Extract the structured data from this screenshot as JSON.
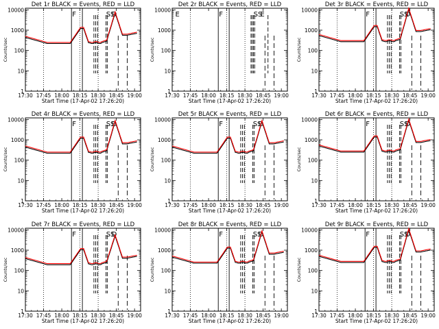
{
  "figure": {
    "x_tick_labels": [
      "17:30",
      "17:45",
      "18:00",
      "18:15",
      "18:30",
      "18:45",
      "19:00"
    ],
    "y_tick_labels": [
      "1",
      "10",
      "100",
      "1000",
      "10000"
    ],
    "y_label": "Counts/sec",
    "x_label": "Start Time (17-Apr-02 17:26:20)"
  },
  "chart_data": [
    {
      "type": "line",
      "title": "Det 1r BLACK = Events, RED = LLD",
      "has_data": true,
      "flag_labels": [
        "F",
        "SS",
        "D"
      ],
      "peak": 8000,
      "base": 250,
      "scale": 1.0,
      "series": [
        {
          "name": "Events",
          "color": "#000000"
        },
        {
          "name": "LLD",
          "color": "#ff0000"
        }
      ],
      "xlim": [
        "17:30",
        "19:05"
      ],
      "ylim": [
        1,
        12000
      ],
      "yscale": "log"
    },
    {
      "type": "line",
      "title": "Det 2r BLACK = Events, RED = LLD",
      "has_data": false,
      "flag_labels": [
        "E",
        "F",
        "SS",
        "E"
      ],
      "peak": 0,
      "base": 0,
      "scale": 1.0,
      "series": [
        {
          "name": "Events",
          "color": "#000000"
        },
        {
          "name": "LLD",
          "color": "#ff0000"
        }
      ],
      "xlim": [
        "17:30",
        "19:05"
      ],
      "ylim": [
        1,
        12000
      ],
      "yscale": "log"
    },
    {
      "type": "line",
      "title": "Det 3r BLACK = Events, RED = LLD",
      "has_data": true,
      "flag_labels": [
        "F",
        "SS",
        "D"
      ],
      "peak": 11000,
      "base": 280,
      "scale": 1.1,
      "series": [
        {
          "name": "Events",
          "color": "#000000"
        },
        {
          "name": "LLD",
          "color": "#ff0000"
        }
      ],
      "xlim": [
        "17:30",
        "19:05"
      ],
      "ylim": [
        1,
        12000
      ],
      "yscale": "log"
    },
    {
      "type": "line",
      "title": "Det 4r BLACK = Events, RED = LLD",
      "has_data": true,
      "flag_labels": [
        "F",
        "SS",
        "D"
      ],
      "peak": 9000,
      "base": 250,
      "scale": 1.0,
      "series": [
        {
          "name": "Events",
          "color": "#000000"
        },
        {
          "name": "LLD",
          "color": "#ff0000"
        }
      ],
      "xlim": [
        "17:30",
        "19:05"
      ],
      "ylim": [
        1,
        12000
      ],
      "yscale": "log"
    },
    {
      "type": "line",
      "title": "Det 5r BLACK = Events, RED = LLD",
      "has_data": true,
      "flag_labels": [
        "F",
        "SS",
        "D"
      ],
      "peak": 9000,
      "base": 250,
      "scale": 1.0,
      "series": [
        {
          "name": "Events",
          "color": "#000000"
        },
        {
          "name": "LLD",
          "color": "#ff0000"
        }
      ],
      "xlim": [
        "17:30",
        "19:05"
      ],
      "ylim": [
        1,
        12000
      ],
      "yscale": "log"
    },
    {
      "type": "line",
      "title": "Det 6r BLACK = Events, RED = LLD",
      "has_data": true,
      "flag_labels": [
        "F",
        "SS",
        "D"
      ],
      "peak": 10000,
      "base": 270,
      "scale": 1.05,
      "series": [
        {
          "name": "Events",
          "color": "#000000"
        },
        {
          "name": "LLD",
          "color": "#ff0000"
        }
      ],
      "xlim": [
        "17:30",
        "19:05"
      ],
      "ylim": [
        1,
        12000
      ],
      "yscale": "log"
    },
    {
      "type": "line",
      "title": "Det 7r BLACK = Events, RED = LLD",
      "has_data": true,
      "flag_labels": [
        "F",
        "SS",
        "D"
      ],
      "peak": 6000,
      "base": 230,
      "scale": 0.95,
      "series": [
        {
          "name": "Events",
          "color": "#000000"
        },
        {
          "name": "LLD",
          "color": "#ff0000"
        }
      ],
      "xlim": [
        "17:30",
        "19:05"
      ],
      "ylim": [
        1,
        12000
      ],
      "yscale": "log"
    },
    {
      "type": "line",
      "title": "Det 8r BLACK = Events, RED = LLD",
      "has_data": true,
      "flag_labels": [
        "F",
        "SS",
        "D"
      ],
      "peak": 9000,
      "base": 260,
      "scale": 1.0,
      "series": [
        {
          "name": "Events",
          "color": "#000000"
        },
        {
          "name": "LLD",
          "color": "#ff0000"
        }
      ],
      "xlim": [
        "17:30",
        "19:05"
      ],
      "ylim": [
        1,
        12000
      ],
      "yscale": "log"
    },
    {
      "type": "line",
      "title": "Det 9r BLACK = Events, RED = LLD",
      "has_data": true,
      "flag_labels": [
        "F",
        "SS",
        "D"
      ],
      "peak": 11000,
      "base": 270,
      "scale": 1.05,
      "series": [
        {
          "name": "Events",
          "color": "#000000"
        },
        {
          "name": "LLD",
          "color": "#ff0000"
        }
      ],
      "xlim": [
        "17:30",
        "19:05"
      ],
      "ylim": [
        1,
        12000
      ],
      "yscale": "log"
    }
  ]
}
